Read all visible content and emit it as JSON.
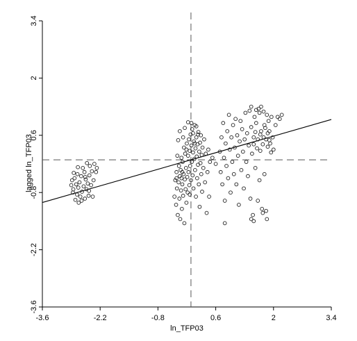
{
  "chart_data": {
    "type": "scatter",
    "title": "",
    "xlabel": "ln_TFP03",
    "ylabel": "lagged ln_TFP03",
    "xlim": [
      -3.6,
      3.4
    ],
    "ylim": [
      -3.6,
      3.4
    ],
    "xticks": [
      "-3.6",
      "-2.2",
      "-0.8",
      "0.6",
      "2",
      "3.4"
    ],
    "yticks": [
      "-3.6",
      "-2.2",
      "-0.8",
      "0.6",
      "2",
      "3.4"
    ],
    "grid": false,
    "reference_lines": {
      "x_mean": 0.0,
      "y_mean": 0.0
    },
    "fit_line": {
      "slope": 0.29,
      "intercept": 0.0,
      "x_range": [
        -3.6,
        3.4
      ]
    },
    "series": [
      {
        "values": [
          [
            -2.9,
            -0.62
          ],
          [
            -2.88,
            -0.5
          ],
          [
            -2.85,
            -0.72
          ],
          [
            -2.86,
            -0.8
          ],
          [
            -2.82,
            -0.45
          ],
          [
            -2.8,
            -0.98
          ],
          [
            -2.78,
            -0.6
          ],
          [
            -2.76,
            -0.85
          ],
          [
            -2.75,
            -0.35
          ],
          [
            -2.73,
            -0.68
          ],
          [
            -2.72,
            -1.05
          ],
          [
            -2.7,
            -0.55
          ],
          [
            -2.68,
            -0.9
          ],
          [
            -2.66,
            -0.4
          ],
          [
            -2.64,
            -0.78
          ],
          [
            -2.62,
            -0.2
          ],
          [
            -2.6,
            -0.65
          ],
          [
            -2.58,
            -0.3
          ],
          [
            -2.57,
            -0.95
          ],
          [
            -2.55,
            -0.48
          ],
          [
            -2.53,
            -0.72
          ],
          [
            -2.52,
            -0.08
          ],
          [
            -2.5,
            -0.58
          ],
          [
            -2.48,
            -0.88
          ],
          [
            -2.46,
            -0.38
          ],
          [
            -2.45,
            -0.15
          ],
          [
            -2.42,
            -0.62
          ],
          [
            -2.4,
            -0.28
          ],
          [
            -2.38,
            -0.9
          ],
          [
            -2.36,
            -0.5
          ],
          [
            -2.34,
            -0.1
          ],
          [
            -2.3,
            -0.3
          ],
          [
            -2.28,
            -0.2
          ],
          [
            -2.84,
            -0.32
          ],
          [
            -2.74,
            -0.18
          ],
          [
            -2.65,
            -1.0
          ],
          [
            -2.56,
            -0.42
          ],
          [
            -2.47,
            -0.76
          ],
          [
            -0.4,
            -0.9
          ],
          [
            -0.38,
            -0.5
          ],
          [
            -0.36,
            -1.1
          ],
          [
            -0.35,
            -0.3
          ],
          [
            -0.34,
            -0.7
          ],
          [
            -0.32,
            -1.35
          ],
          [
            -0.3,
            -0.55
          ],
          [
            -0.29,
            -0.15
          ],
          [
            -0.28,
            -0.95
          ],
          [
            -0.27,
            -0.4
          ],
          [
            -0.26,
            -1.45
          ],
          [
            -0.25,
            -0.25
          ],
          [
            -0.24,
            -0.75
          ],
          [
            -0.23,
            0.05
          ],
          [
            -0.22,
            -1.2
          ],
          [
            -0.21,
            -0.6
          ],
          [
            -0.2,
            -0.05
          ],
          [
            -0.19,
            -0.88
          ],
          [
            -0.18,
            -0.35
          ],
          [
            -0.17,
            0.3
          ],
          [
            -0.16,
            -1.55
          ],
          [
            -0.15,
            -0.48
          ],
          [
            -0.14,
            0.15
          ],
          [
            -0.13,
            -0.72
          ],
          [
            -0.12,
            -0.2
          ],
          [
            -0.11,
            -1.05
          ],
          [
            -0.1,
            0.4
          ],
          [
            -0.09,
            -0.42
          ],
          [
            -0.08,
            -0.8
          ],
          [
            -0.07,
            0.1
          ],
          [
            -0.06,
            -0.3
          ],
          [
            -0.05,
            0.5
          ],
          [
            -0.04,
            -0.62
          ],
          [
            -0.03,
            0.22
          ],
          [
            -0.02,
            -0.15
          ],
          [
            -0.01,
            0.62
          ],
          [
            0.0,
            -0.5
          ],
          [
            0.01,
            0.35
          ],
          [
            0.02,
            -0.05
          ],
          [
            0.03,
            0.75
          ],
          [
            0.04,
            -0.38
          ],
          [
            0.05,
            0.18
          ],
          [
            0.06,
            -0.7
          ],
          [
            0.07,
            0.45
          ],
          [
            0.08,
            0.02
          ],
          [
            0.09,
            0.85
          ],
          [
            0.1,
            -0.25
          ],
          [
            0.11,
            0.28
          ],
          [
            0.12,
            -0.9
          ],
          [
            0.13,
            0.55
          ],
          [
            0.14,
            0.08
          ],
          [
            0.15,
            -0.45
          ],
          [
            0.16,
            0.38
          ],
          [
            0.17,
            -0.12
          ],
          [
            0.18,
            0.68
          ],
          [
            0.19,
            -0.6
          ],
          [
            0.2,
            0.2
          ],
          [
            0.21,
            -1.15
          ],
          [
            0.22,
            0.42
          ],
          [
            0.23,
            -0.08
          ],
          [
            0.24,
            0.6
          ],
          [
            0.25,
            -0.35
          ],
          [
            0.26,
            0.12
          ],
          [
            0.27,
            -0.78
          ],
          [
            0.28,
            0.3
          ],
          [
            0.3,
            -0.2
          ],
          [
            0.32,
            0.5
          ],
          [
            0.34,
            -0.55
          ],
          [
            0.36,
            0.15
          ],
          [
            0.38,
            -1.3
          ],
          [
            0.4,
            -0.3
          ],
          [
            0.42,
            0.25
          ],
          [
            0.44,
            -0.9
          ],
          [
            0.46,
            -0.05
          ],
          [
            -0.33,
            0.1
          ],
          [
            -0.31,
            0.48
          ],
          [
            -0.27,
            0.7
          ],
          [
            -0.23,
            -0.45
          ],
          [
            -0.19,
            0.55
          ],
          [
            -0.15,
            0.78
          ],
          [
            -0.11,
            0.25
          ],
          [
            -0.07,
            0.92
          ],
          [
            -0.03,
            -0.85
          ],
          [
            0.01,
            0.9
          ],
          [
            0.05,
            0.65
          ],
          [
            0.09,
            0.4
          ],
          [
            0.13,
            0.82
          ],
          [
            0.17,
            0.62
          ],
          [
            -0.35,
            -0.45
          ],
          [
            -0.21,
            -0.3
          ],
          [
            0.7,
            0.2
          ],
          [
            0.72,
            -0.3
          ],
          [
            0.74,
            0.55
          ],
          [
            0.76,
            -0.6
          ],
          [
            0.78,
            0.9
          ],
          [
            0.8,
            0.05
          ],
          [
            0.82,
            -1.0
          ],
          [
            0.84,
            0.4
          ],
          [
            0.86,
            -0.15
          ],
          [
            0.88,
            0.7
          ],
          [
            0.9,
            -0.45
          ],
          [
            0.92,
            1.1
          ],
          [
            0.94,
            0.25
          ],
          [
            0.96,
            -0.8
          ],
          [
            0.98,
            0.55
          ],
          [
            1.0,
            -0.05
          ],
          [
            1.02,
            0.85
          ],
          [
            1.04,
            -0.35
          ],
          [
            1.06,
            0.3
          ],
          [
            1.08,
            1.0
          ],
          [
            1.1,
            -0.6
          ],
          [
            1.12,
            0.6
          ],
          [
            1.14,
            0.1
          ],
          [
            1.16,
            -1.1
          ],
          [
            1.18,
            0.45
          ],
          [
            1.2,
            0.95
          ],
          [
            1.22,
            -0.25
          ],
          [
            1.24,
            0.75
          ],
          [
            1.26,
            0.2
          ],
          [
            1.28,
            -0.7
          ],
          [
            1.3,
            0.5
          ],
          [
            1.32,
            1.15
          ],
          [
            1.34,
            -0.05
          ],
          [
            1.36,
            0.65
          ],
          [
            1.38,
            -0.4
          ],
          [
            1.4,
            0.35
          ],
          [
            1.42,
            1.2
          ],
          [
            1.44,
            -0.95
          ],
          [
            1.46,
            0.8
          ],
          [
            1.48,
            0.15
          ],
          [
            1.5,
            -1.35
          ],
          [
            1.52,
            0.55
          ],
          [
            1.54,
            1.05
          ],
          [
            1.56,
            -0.2
          ],
          [
            1.58,
            0.9
          ],
          [
            1.6,
            0.28
          ],
          [
            1.62,
            -1.0
          ],
          [
            1.64,
            1.25
          ],
          [
            1.66,
            -0.5
          ],
          [
            1.68,
            0.62
          ],
          [
            1.7,
            1.3
          ],
          [
            1.72,
            -1.2
          ],
          [
            1.74,
            0.38
          ],
          [
            1.76,
            1.18
          ],
          [
            1.78,
            -0.35
          ],
          [
            1.8,
            0.78
          ],
          [
            1.82,
            0.5
          ],
          [
            1.84,
            1.1
          ],
          [
            1.86,
            0.32
          ],
          [
            1.88,
            0.95
          ],
          [
            1.9,
            0.7
          ],
          [
            1.92,
            0.4
          ],
          [
            1.95,
            1.05
          ],
          [
            1.98,
            0.55
          ],
          [
            2.0,
            0.25
          ],
          [
            2.05,
            0.85
          ],
          [
            2.1,
            1.05
          ],
          [
            2.15,
            1.0
          ],
          [
            2.2,
            1.1
          ],
          [
            1.46,
            1.3
          ],
          [
            1.58,
            1.22
          ],
          [
            1.66,
            1.15
          ],
          [
            1.74,
            -1.3
          ],
          [
            1.82,
            -1.25
          ],
          [
            1.84,
            -1.45
          ],
          [
            0.82,
            -1.55
          ],
          [
            1.46,
            -1.45
          ],
          [
            1.52,
            -1.5
          ],
          [
            0.52,
            0.05
          ],
          [
            0.6,
            -0.1
          ],
          [
            1.62,
            0.5
          ],
          [
            1.52,
            0.38
          ],
          [
            1.7,
            0.7
          ],
          [
            1.78,
            0.85
          ],
          [
            1.56,
            0.68
          ],
          [
            1.68,
            0.22
          ],
          [
            1.76,
            0.55
          ],
          [
            1.86,
            0.65
          ],
          [
            1.9,
            0.48
          ],
          [
            1.94,
            0.18
          ]
        ]
      }
    ]
  }
}
